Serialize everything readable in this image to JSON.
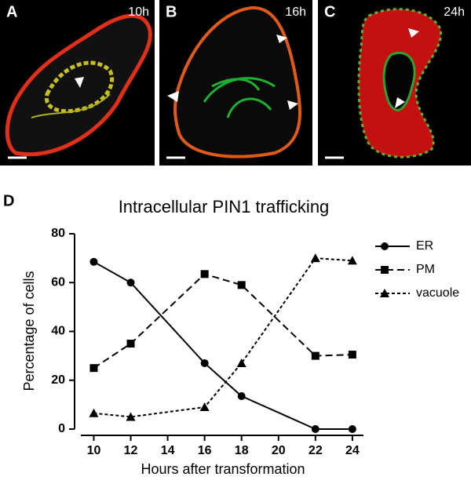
{
  "panels": [
    {
      "label": "A",
      "time": "10h"
    },
    {
      "label": "B",
      "time": "16h"
    },
    {
      "label": "C",
      "time": "24h"
    }
  ],
  "chart_data": {
    "type": "line",
    "panel_label": "D",
    "title": "Intracellular PIN1 trafficking",
    "x_label": "Hours after transformation",
    "y_label": "Percentage of cells",
    "x": [
      10,
      12,
      16,
      18,
      22,
      24
    ],
    "xlim": [
      9.3,
      24.6
    ],
    "xticks": [
      10,
      12,
      14,
      16,
      18,
      20,
      22,
      24
    ],
    "ylim": [
      0,
      80
    ],
    "yticks": [
      0,
      20,
      40,
      60,
      80
    ],
    "legend": "right",
    "series": [
      {
        "name": "ER",
        "color": "#000000",
        "marker": "circle",
        "dash": "solid",
        "values": [
          68.5,
          60,
          27,
          13.5,
          0,
          0
        ]
      },
      {
        "name": "PM",
        "color": "#000000",
        "marker": "square",
        "dash": "dashed",
        "values": [
          25,
          35,
          63.5,
          59,
          30,
          30.5
        ]
      },
      {
        "name": "vacuole",
        "color": "#000000",
        "marker": "triangle",
        "dash": "dotted",
        "values": [
          6.5,
          5,
          9,
          27,
          70,
          69
        ]
      }
    ]
  }
}
